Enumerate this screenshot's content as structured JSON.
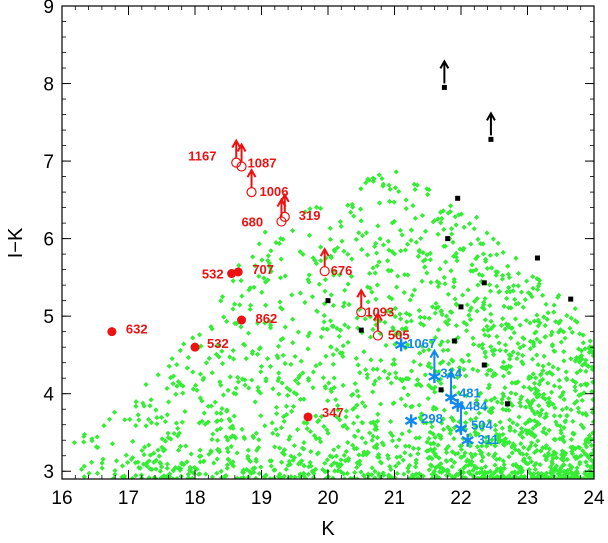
{
  "chart_data": {
    "type": "scatter",
    "title": "",
    "xlabel": "K",
    "ylabel": "I−K",
    "xlim": [
      16,
      24
    ],
    "ylim": [
      2.9,
      9.0
    ],
    "xticks": [
      16,
      17,
      18,
      19,
      20,
      21,
      22,
      23,
      24
    ],
    "yticks": [
      3,
      4,
      5,
      6,
      7,
      8,
      9
    ],
    "grid": false,
    "legend": "none",
    "colors": {
      "green": "#33ee33",
      "red": "#ee1111",
      "blue": "#1188ee",
      "black": "#000000"
    },
    "background_field": {
      "color": "#33ee33",
      "marker": "diamond",
      "description_count": 2000,
      "envelope_top": [
        [
          16,
          3.3
        ],
        [
          17,
          3.9
        ],
        [
          18,
          4.8
        ],
        [
          19,
          6.1
        ],
        [
          20,
          6.6
        ],
        [
          21,
          6.9
        ],
        [
          22,
          6.5
        ],
        [
          23,
          5.6
        ],
        [
          24,
          4.9
        ]
      ]
    },
    "red_filled": [
      {
        "x": 16.75,
        "y": 4.8,
        "label": "632"
      },
      {
        "x": 18.0,
        "y": 4.6,
        "label": "532"
      },
      {
        "x": 18.55,
        "y": 5.55,
        "label": "532"
      },
      {
        "x": 18.65,
        "y": 5.57,
        "label": "707"
      },
      {
        "x": 18.7,
        "y": 4.95,
        "label": "862"
      },
      {
        "x": 19.7,
        "y": 3.7,
        "label": "347"
      }
    ],
    "red_open_limits": [
      {
        "x": 18.62,
        "y": 6.98,
        "label": "1167"
      },
      {
        "x": 18.7,
        "y": 6.93,
        "label": "1087"
      },
      {
        "x": 18.85,
        "y": 6.6,
        "label": "1006"
      },
      {
        "x": 19.3,
        "y": 6.22,
        "label": "680"
      },
      {
        "x": 19.35,
        "y": 6.28,
        "label": "319"
      },
      {
        "x": 19.95,
        "y": 5.58,
        "label": "676"
      },
      {
        "x": 20.5,
        "y": 5.05,
        "label": "1093"
      },
      {
        "x": 20.75,
        "y": 4.75,
        "label": "505"
      }
    ],
    "blue_stars": [
      {
        "x": 21.1,
        "y": 4.63,
        "label": "1067"
      },
      {
        "x": 21.6,
        "y": 4.22,
        "label": "314"
      },
      {
        "x": 21.25,
        "y": 3.65,
        "label": "298"
      },
      {
        "x": 21.85,
        "y": 3.95,
        "label": "481"
      },
      {
        "x": 21.95,
        "y": 3.85,
        "label": "484"
      },
      {
        "x": 22.0,
        "y": 3.55,
        "label": "504"
      },
      {
        "x": 22.1,
        "y": 3.4,
        "label": "311"
      }
    ],
    "blue_limits": [
      {
        "x": 21.6,
        "y": 4.22
      },
      {
        "x": 21.85,
        "y": 3.95
      },
      {
        "x": 22.0,
        "y": 3.55
      }
    ],
    "black_squares": [
      {
        "x": 21.75,
        "y": 7.95
      },
      {
        "x": 22.45,
        "y": 7.28
      },
      {
        "x": 21.95,
        "y": 6.52
      },
      {
        "x": 21.8,
        "y": 6.0
      },
      {
        "x": 23.15,
        "y": 5.75
      },
      {
        "x": 22.35,
        "y": 5.43
      },
      {
        "x": 23.65,
        "y": 5.22
      },
      {
        "x": 20.0,
        "y": 5.2
      },
      {
        "x": 22.0,
        "y": 5.12
      },
      {
        "x": 20.5,
        "y": 4.82
      },
      {
        "x": 21.9,
        "y": 4.68
      },
      {
        "x": 22.35,
        "y": 4.37
      },
      {
        "x": 21.7,
        "y": 4.05
      },
      {
        "x": 22.7,
        "y": 3.87
      }
    ],
    "black_limits": [
      {
        "x": 21.75,
        "y": 7.95
      },
      {
        "x": 22.45,
        "y": 7.28
      }
    ]
  }
}
